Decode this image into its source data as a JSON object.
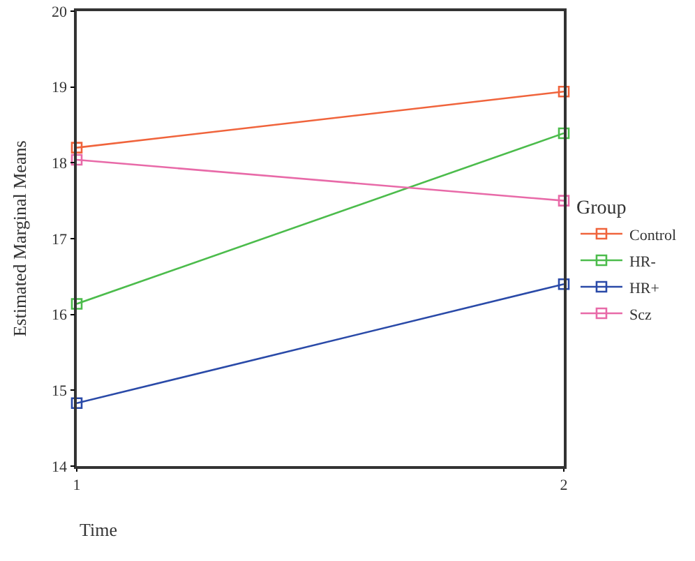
{
  "chart_data": {
    "type": "line",
    "xlabel": "Time",
    "ylabel": "Estimated Marginal Means",
    "legend_title": "Group",
    "x": [
      1,
      2
    ],
    "xlim": [
      1,
      2
    ],
    "xticks": [
      1,
      2
    ],
    "ylim": [
      14,
      20
    ],
    "yticks": [
      14,
      15,
      16,
      17,
      18,
      19,
      20
    ],
    "grid": false,
    "legend": "right",
    "marker": "square",
    "line_style": "solid",
    "series": [
      {
        "name": "Control",
        "color": "#f0643c",
        "values": [
          18.2,
          18.94
        ]
      },
      {
        "name": "HR-",
        "color": "#4cbc4c",
        "values": [
          16.14,
          18.39
        ]
      },
      {
        "name": "HR+",
        "color": "#2a4aa8",
        "values": [
          14.83,
          16.4
        ]
      },
      {
        "name": "Scz",
        "color": "#e86aa8",
        "values": [
          18.04,
          17.5
        ]
      }
    ]
  }
}
